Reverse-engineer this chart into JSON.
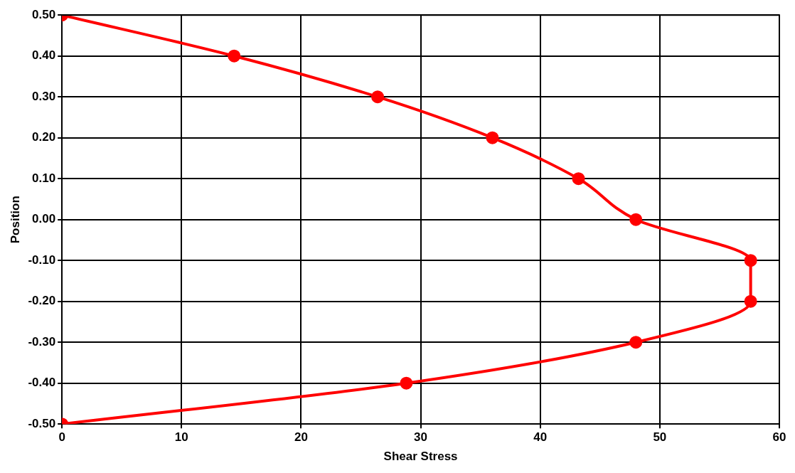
{
  "chart_data": {
    "type": "line",
    "xlabel": "Shear Stress",
    "ylabel": "Position",
    "x": [
      0,
      14.4,
      26.4,
      36.0,
      43.2,
      48.0,
      57.6,
      57.6,
      48.0,
      28.8,
      0
    ],
    "series": [
      {
        "color": "#ff0000",
        "values": [
          0.5,
          0.4,
          0.3,
          0.2,
          0.1,
          0.0,
          -0.1,
          -0.2,
          -0.3,
          -0.4,
          -0.5
        ]
      }
    ],
    "xlim": [
      0,
      60
    ],
    "xticks": [
      0,
      10,
      20,
      30,
      40,
      50,
      60
    ],
    "ylim": [
      -0.5,
      0.5
    ],
    "yticks": [
      {
        "value": -0.5,
        "label": "-0.50"
      },
      {
        "value": -0.4,
        "label": "-0.40"
      },
      {
        "value": -0.3,
        "label": "-0.30"
      },
      {
        "value": -0.2,
        "label": "-0.20"
      },
      {
        "value": -0.1,
        "label": "-0.10"
      },
      {
        "value": 0,
        "label": "0.00"
      },
      {
        "value": 0.1,
        "label": "0.10"
      },
      {
        "value": 0.2,
        "label": "0.20"
      },
      {
        "value": 0.3,
        "label": "0.30"
      },
      {
        "value": 0.4,
        "label": "0.40"
      },
      {
        "value": 0.5,
        "label": "0.50"
      }
    ],
    "grid": true,
    "legend": false,
    "marker": "circle",
    "line_style": "solid"
  }
}
